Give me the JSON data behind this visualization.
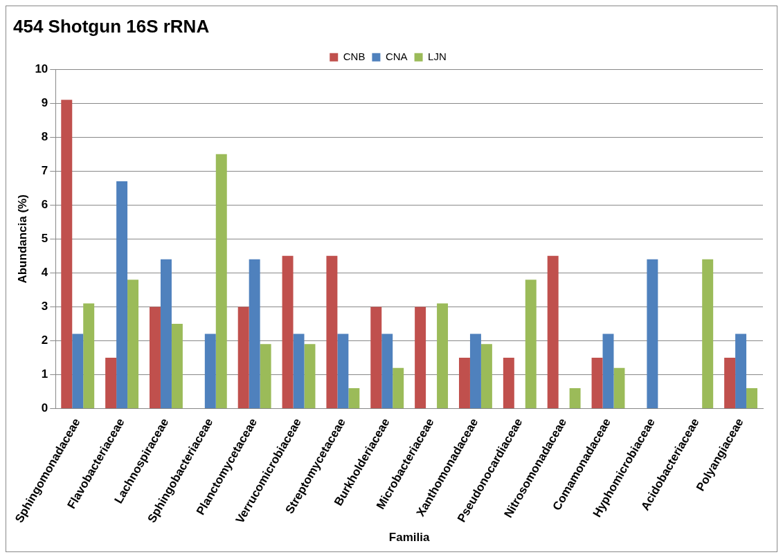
{
  "chart_data": {
    "type": "bar",
    "title": "454 Shotgun 16S rRNA",
    "xlabel": "Familia",
    "ylabel": "Abundancia (%)",
    "categories": [
      "Sphingomonadaceae",
      "Flavobacteriaceae",
      "Lachnospiraceae",
      "Sphingobacteriaceae",
      "Planctomycetaceae",
      "Verrucomicrobiaceae",
      "Streptomycetaceae",
      "Burkholderiaceae",
      "Microbacteriaceae",
      "Xanthomonadaceae",
      "Pseudonocardiaceae",
      "Nitrosomonadaceae",
      "Comamonadaceae",
      "Hyphomicrobiaceae",
      "Acidobacteriaceae",
      "Polyangiaceae"
    ],
    "series": [
      {
        "name": "CNB",
        "color": "#c0504d",
        "values": [
          9.1,
          1.5,
          3.0,
          0,
          3.0,
          4.5,
          4.5,
          3.0,
          3.0,
          1.5,
          1.5,
          4.5,
          1.5,
          0,
          0,
          1.5
        ]
      },
      {
        "name": "CNA",
        "color": "#4f81bd",
        "values": [
          2.2,
          6.7,
          4.4,
          2.2,
          4.4,
          2.2,
          2.2,
          2.2,
          0,
          2.2,
          0,
          0,
          2.2,
          4.4,
          0,
          2.2
        ]
      },
      {
        "name": "LJN",
        "color": "#9bbb59",
        "values": [
          3.1,
          3.8,
          2.5,
          7.5,
          1.9,
          1.9,
          0.6,
          1.2,
          3.1,
          1.9,
          3.8,
          0.6,
          1.2,
          0,
          4.4,
          0.6
        ]
      }
    ],
    "ylim": [
      0,
      10
    ],
    "yticks": [
      0,
      1,
      2,
      3,
      4,
      5,
      6,
      7,
      8,
      9,
      10
    ],
    "grid": "y",
    "legend": "top"
  }
}
